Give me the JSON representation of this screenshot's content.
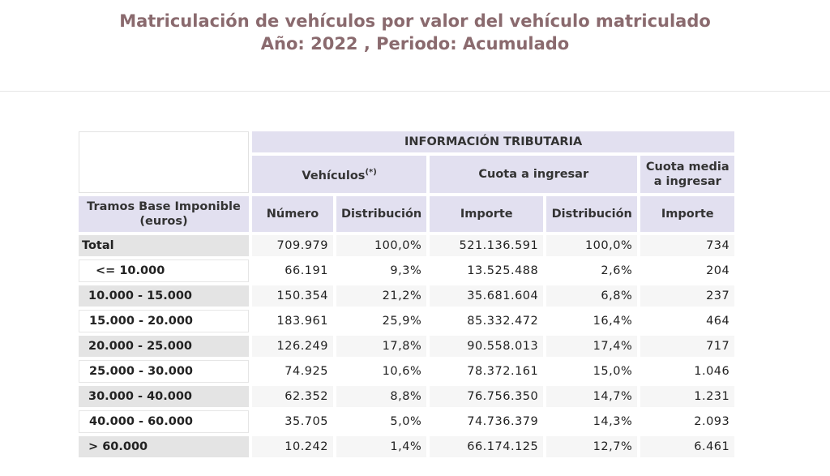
{
  "header": {
    "title": "Matriculación de vehículos por valor del vehículo matriculado",
    "subtitle": "Año: 2022 , Periodo: Acumulado"
  },
  "table": {
    "group": "INFORMACIÓN TRIBUTARIA",
    "vehiculos": "Vehículos",
    "vehiculos_note": "(*)",
    "cuota": "Cuota a ingresar",
    "cuota_media": "Cuota media a ingresar",
    "tramos": "Tramos Base Imponible (euros)",
    "columns": [
      "Número",
      "Distribución",
      "Importe",
      "Distribución",
      "Importe"
    ],
    "rows": [
      [
        "Total",
        "709.979",
        "100,0%",
        "521.136.591",
        "100,0%",
        "734"
      ],
      [
        "<= 10.000",
        "66.191",
        "9,3%",
        "13.525.488",
        "2,6%",
        "204"
      ],
      [
        "10.000 - 15.000",
        "150.354",
        "21,2%",
        "35.681.604",
        "6,8%",
        "237"
      ],
      [
        "15.000 - 20.000",
        "183.961",
        "25,9%",
        "85.332.472",
        "16,4%",
        "464"
      ],
      [
        "20.000 - 25.000",
        "126.249",
        "17,8%",
        "90.558.013",
        "17,4%",
        "717"
      ],
      [
        "25.000 - 30.000",
        "74.925",
        "10,6%",
        "78.372.161",
        "15,0%",
        "1.046"
      ],
      [
        "30.000 - 40.000",
        "62.352",
        "8,8%",
        "76.756.350",
        "14,7%",
        "1.231"
      ],
      [
        "40.000 - 60.000",
        "35.705",
        "5,0%",
        "74.736.379",
        "14,3%",
        "2.093"
      ],
      [
        "> 60.000",
        "10.242",
        "1,4%",
        "66.174.125",
        "12,7%",
        "6.461"
      ]
    ]
  }
}
